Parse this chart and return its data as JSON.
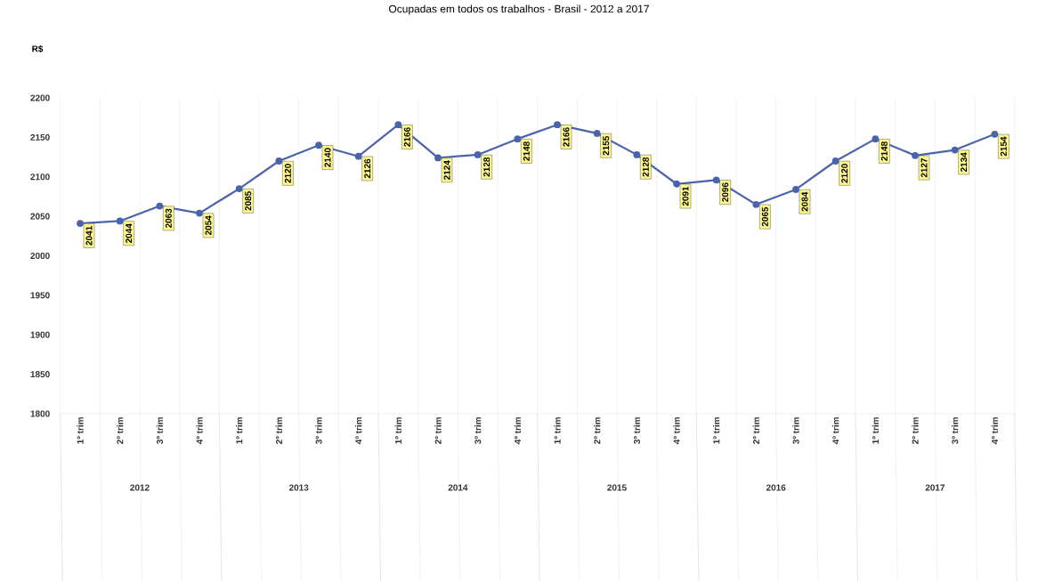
{
  "chart_data": {
    "type": "line",
    "title": "Ocupadas em todos os trabalhos - Brasil - 2012 a 2017",
    "ylabel": "R$",
    "categories": [
      "1º trim",
      "2º trim",
      "3º trim",
      "4º trim",
      "1º trim",
      "2º trim",
      "3º trim",
      "4º trim",
      "1º trim",
      "2º trim",
      "3º trim",
      "4º trim",
      "1º trim",
      "2º trim",
      "3º trim",
      "4º trim",
      "1º trim",
      "2º trim",
      "3º trim",
      "4º trim",
      "1º trim",
      "2º trim",
      "3º trim",
      "4º trim"
    ],
    "values": [
      2041,
      2044,
      2063,
      2054,
      2085,
      2120,
      2140,
      2126,
      2166,
      2124,
      2128,
      2148,
      2166,
      2155,
      2128,
      2091,
      2096,
      2065,
      2084,
      2120,
      2148,
      2127,
      2134,
      2154
    ],
    "color": "#4a63ad",
    "marker": "circle",
    "line_style": "solid",
    "data_labels": true,
    "grid": "x",
    "ylim": [
      1800,
      2200
    ],
    "yticks": [
      1800,
      1850,
      1900,
      1950,
      2000,
      2050,
      2100,
      2150,
      2200
    ],
    "annotations": [
      "2012",
      "2013",
      "2014",
      "2015",
      "2016",
      "2017"
    ]
  }
}
